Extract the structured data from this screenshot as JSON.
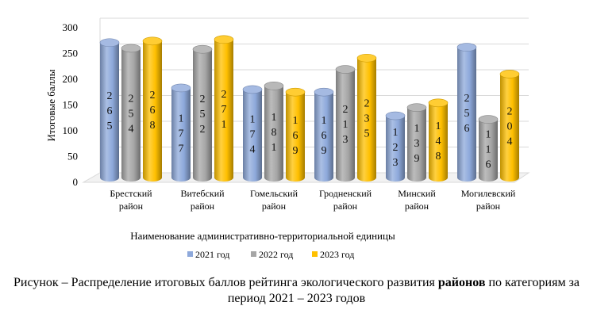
{
  "chart_data": {
    "type": "bar",
    "categories": [
      [
        "Брестский",
        "район"
      ],
      [
        "Витебский",
        "район"
      ],
      [
        "Гомельский",
        "район"
      ],
      [
        "Гродненский",
        "район"
      ],
      [
        "Минский",
        "район"
      ],
      [
        "Могилевский",
        "район"
      ]
    ],
    "series": [
      {
        "name": "2021 год",
        "color": "#8EA9DB",
        "values": [
          265,
          177,
          174,
          169,
          123,
          256
        ]
      },
      {
        "name": "2022 год",
        "color": "#A6A6A6",
        "values": [
          254,
          252,
          181,
          213,
          139,
          116
        ]
      },
      {
        "name": "2023 год",
        "color": "#FFC000",
        "values": [
          268,
          271,
          169,
          235,
          148,
          204
        ]
      }
    ],
    "ylabel": "Итоговые баллы",
    "xlabel": "Наименование административно-территориальной единицы",
    "ylim": [
      0,
      300
    ],
    "yticks": [
      0,
      50,
      100,
      150,
      200,
      250,
      300
    ],
    "grid": true,
    "legend_position": "bottom"
  },
  "caption": {
    "part1": "Рисунок – Распределение итоговых баллов рейтинга экологического развития ",
    "bold": "районов",
    "part2": " по категориям за период 2021 – 2023 годов"
  }
}
